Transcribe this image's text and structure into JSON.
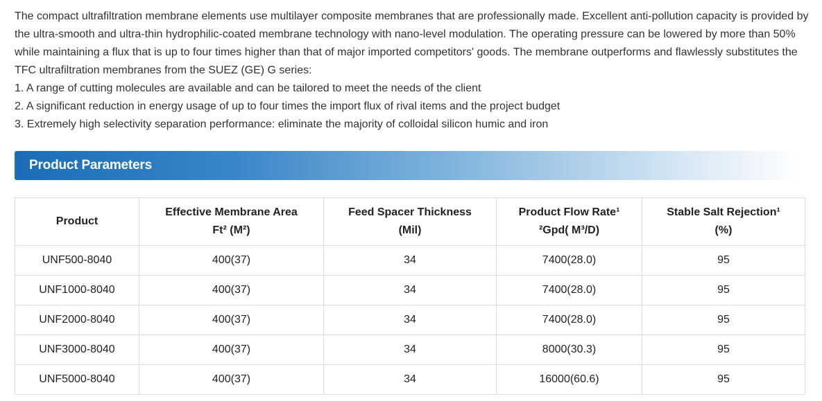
{
  "intro": {
    "paragraph": "The compact ultrafiltration membrane elements use multilayer composite membranes that are professionally made. Excellent anti-pollution capacity is provided by the ultra-smooth and ultra-thin hydrophilic-coated membrane technology with nano-level modulation. The operating pressure can be lowered by more than 50% while maintaining a flux that is up to four times higher than that of major imported competitors' goods. The membrane outperforms and flawlessly substitutes the TFC ultrafiltration membranes from the SUEZ (GE) G series:",
    "points": [
      "1. A range of cutting molecules are available and can be tailored to meet the needs of the client",
      "2. A significant reduction in energy usage of up to four times the import flux of rival items and the project budget",
      "3. Extremely high selectivity separation performance: eliminate the majority of colloidal silicon humic and iron"
    ]
  },
  "section": {
    "title": "Product Parameters"
  },
  "table": {
    "headers": [
      {
        "line1": "Product",
        "line2": ""
      },
      {
        "line1": "Effective Membrane Area",
        "line2": "Ft² (M²)"
      },
      {
        "line1": "Feed Spacer Thickness",
        "line2": "(Mil)"
      },
      {
        "line1": "Product Flow Rate¹",
        "line2": "²Gpd( M³/D)"
      },
      {
        "line1": "Stable Salt Rejection¹",
        "line2": "(%)"
      }
    ],
    "rows": [
      [
        "UNF500-8040",
        "400(37)",
        "34",
        "7400(28.0)",
        "95"
      ],
      [
        "UNF1000-8040",
        "400(37)",
        "34",
        "7400(28.0)",
        "95"
      ],
      [
        "UNF2000-8040",
        "400(37)",
        "34",
        "7400(28.0)",
        "95"
      ],
      [
        "UNF3000-8040",
        "400(37)",
        "34",
        "8000(30.3)",
        "95"
      ],
      [
        "UNF5000-8040",
        "400(37)",
        "34",
        "16000(60.6)",
        "95"
      ]
    ]
  },
  "colors": {
    "banner_start": "#1a6db6",
    "banner_end": "#ffffff",
    "text": "#333333",
    "border": "#dcdcdc"
  }
}
